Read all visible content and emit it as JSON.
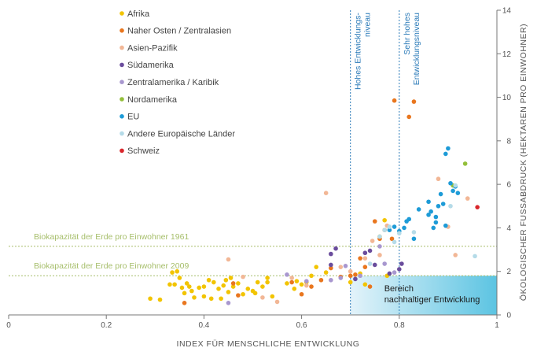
{
  "chart_data": {
    "type": "scatter",
    "title": "",
    "xlabel": "INDEX FÜR MENSCHLICHE ENTWICKLUNG",
    "ylabel": "ÖKOLOGISCHER FUSSABDRUCK (HEKTAREN PRO EINWOHNER)",
    "xlim": [
      0,
      1
    ],
    "ylim": [
      0,
      14
    ],
    "x_ticks": [
      "0",
      "0.2",
      "0.4",
      "0.6",
      "0.8",
      "1"
    ],
    "y_ticks": [
      "0",
      "2",
      "4",
      "6",
      "8",
      "10",
      "12",
      "14"
    ],
    "grid": false,
    "legend_position": "top-left",
    "reference_lines": {
      "horizontal": [
        {
          "label": "Biokapazität der Erde pro Einwohner 1961",
          "y": 3.15,
          "color": "#a6be6a"
        },
        {
          "label": "Biokapazität der Erde pro Einwohner 2009",
          "y": 1.8,
          "color": "#a6be6a"
        }
      ],
      "vertical": [
        {
          "label_lines": [
            "Hohes Entwicklungs-",
            "niveau"
          ],
          "x": 0.7,
          "color": "#2a7ab8"
        },
        {
          "label_lines": [
            "Sehr hohes",
            "Entwicklungsniveau"
          ],
          "x": 0.8,
          "color": "#2a7ab8"
        }
      ]
    },
    "region": {
      "label_lines": [
        "Bereich",
        "nachhaltiger Entwicklung"
      ],
      "x": [
        0.7,
        1.0
      ],
      "y": [
        0,
        1.8
      ],
      "color_start": "#e3f3fa",
      "color_end": "#5cc4e2"
    },
    "series": [
      {
        "name": "Afrika",
        "color": "#f2c400",
        "points": [
          [
            0.29,
            0.75
          ],
          [
            0.31,
            0.7
          ],
          [
            0.33,
            1.4
          ],
          [
            0.335,
            1.95
          ],
          [
            0.34,
            1.4
          ],
          [
            0.345,
            2.0
          ],
          [
            0.35,
            1.7
          ],
          [
            0.355,
            1.25
          ],
          [
            0.36,
            1.0
          ],
          [
            0.365,
            1.45
          ],
          [
            0.37,
            1.3
          ],
          [
            0.375,
            1.1
          ],
          [
            0.38,
            0.8
          ],
          [
            0.39,
            1.25
          ],
          [
            0.4,
            1.3
          ],
          [
            0.41,
            1.6
          ],
          [
            0.415,
            0.75
          ],
          [
            0.42,
            1.5
          ],
          [
            0.43,
            1.2
          ],
          [
            0.435,
            0.75
          ],
          [
            0.44,
            1.35
          ],
          [
            0.445,
            1.6
          ],
          [
            0.45,
            1.05
          ],
          [
            0.455,
            1.7
          ],
          [
            0.46,
            1.3
          ],
          [
            0.47,
            1.45
          ],
          [
            0.48,
            0.95
          ],
          [
            0.49,
            1.2
          ],
          [
            0.5,
            1.1
          ],
          [
            0.505,
            1.0
          ],
          [
            0.51,
            1.5
          ],
          [
            0.52,
            1.3
          ],
          [
            0.53,
            1.5
          ],
          [
            0.54,
            0.85
          ],
          [
            0.57,
            1.45
          ],
          [
            0.59,
            1.55
          ],
          [
            0.6,
            1.4
          ],
          [
            0.61,
            1.5
          ],
          [
            0.63,
            2.2
          ],
          [
            0.65,
            1.95
          ],
          [
            0.7,
            1.5
          ],
          [
            0.72,
            1.9
          ],
          [
            0.73,
            1.4
          ],
          [
            0.77,
            4.35
          ],
          [
            0.76,
            3.6
          ],
          [
            0.775,
            1.8
          ],
          [
            0.4,
            0.85
          ],
          [
            0.62,
            1.8
          ],
          [
            0.585,
            1.2
          ],
          [
            0.53,
            1.7
          ]
        ]
      },
      {
        "name": "Naher Osten / Zentralasien",
        "color": "#e9761e",
        "points": [
          [
            0.36,
            0.55
          ],
          [
            0.46,
            1.45
          ],
          [
            0.47,
            0.9
          ],
          [
            0.58,
            1.5
          ],
          [
            0.6,
            0.95
          ],
          [
            0.62,
            1.3
          ],
          [
            0.64,
            1.6
          ],
          [
            0.66,
            2.15
          ],
          [
            0.68,
            1.75
          ],
          [
            0.7,
            1.8
          ],
          [
            0.71,
            1.85
          ],
          [
            0.72,
            2.6
          ],
          [
            0.73,
            2.2
          ],
          [
            0.74,
            1.3
          ],
          [
            0.75,
            4.3
          ],
          [
            0.76,
            3.5
          ],
          [
            0.77,
            3.9
          ],
          [
            0.785,
            3.5
          ],
          [
            0.79,
            9.85
          ],
          [
            0.82,
            9.1
          ],
          [
            0.83,
            9.8
          ]
        ]
      },
      {
        "name": "Asien-Pazifik",
        "color": "#f2b796",
        "points": [
          [
            0.45,
            2.55
          ],
          [
            0.48,
            1.75
          ],
          [
            0.52,
            0.8
          ],
          [
            0.55,
            0.6
          ],
          [
            0.58,
            1.7
          ],
          [
            0.61,
            1.35
          ],
          [
            0.65,
            5.6
          ],
          [
            0.68,
            2.2
          ],
          [
            0.7,
            2.0
          ],
          [
            0.73,
            2.6
          ],
          [
            0.745,
            3.4
          ],
          [
            0.76,
            2.75
          ],
          [
            0.775,
            4.1
          ],
          [
            0.88,
            6.25
          ],
          [
            0.915,
            2.75
          ],
          [
            0.9,
            4.05
          ],
          [
            0.94,
            5.35
          ]
        ]
      },
      {
        "name": "Südamerika",
        "color": "#6a4c9c",
        "points": [
          [
            0.66,
            2.8
          ],
          [
            0.66,
            2.3
          ],
          [
            0.67,
            3.05
          ],
          [
            0.71,
            1.65
          ],
          [
            0.73,
            2.85
          ],
          [
            0.74,
            2.95
          ],
          [
            0.75,
            2.3
          ],
          [
            0.78,
            1.9
          ],
          [
            0.8,
            2.1
          ],
          [
            0.805,
            2.35
          ]
        ]
      },
      {
        "name": "Zentralamerika / Karibik",
        "color": "#a897cf",
        "points": [
          [
            0.45,
            0.55
          ],
          [
            0.57,
            1.85
          ],
          [
            0.61,
            1.55
          ],
          [
            0.66,
            1.6
          ],
          [
            0.68,
            1.7
          ],
          [
            0.69,
            2.25
          ],
          [
            0.72,
            1.8
          ],
          [
            0.76,
            3.15
          ],
          [
            0.77,
            2.35
          ],
          [
            0.79,
            1.95
          ]
        ]
      },
      {
        "name": "Nordamerika",
        "color": "#93bf3a",
        "points": [
          [
            0.91,
            5.95
          ],
          [
            0.935,
            6.95
          ]
        ]
      },
      {
        "name": "EU",
        "color": "#1d9bd7",
        "points": [
          [
            0.8,
            3.85
          ],
          [
            0.81,
            4.0
          ],
          [
            0.815,
            4.3
          ],
          [
            0.83,
            3.5
          ],
          [
            0.84,
            4.85
          ],
          [
            0.86,
            4.6
          ],
          [
            0.865,
            4.75
          ],
          [
            0.87,
            4.0
          ],
          [
            0.875,
            4.5
          ],
          [
            0.88,
            5.0
          ],
          [
            0.885,
            5.55
          ],
          [
            0.89,
            5.1
          ],
          [
            0.895,
            7.4
          ],
          [
            0.9,
            7.65
          ],
          [
            0.905,
            6.05
          ],
          [
            0.91,
            5.7
          ],
          [
            0.915,
            5.9
          ],
          [
            0.92,
            5.6
          ],
          [
            0.86,
            5.2
          ],
          [
            0.875,
            4.25
          ],
          [
            0.895,
            4.1
          ],
          [
            0.82,
            4.4
          ],
          [
            0.78,
            3.9
          ],
          [
            0.79,
            4.05
          ]
        ]
      },
      {
        "name": "Andere Europäische Länder",
        "color": "#b5dbe8",
        "points": [
          [
            0.74,
            2.35
          ],
          [
            0.76,
            3.6
          ],
          [
            0.77,
            3.9
          ],
          [
            0.78,
            4.05
          ],
          [
            0.79,
            3.35
          ],
          [
            0.8,
            3.75
          ],
          [
            0.83,
            3.8
          ],
          [
            0.905,
            5.0
          ],
          [
            0.955,
            2.7
          ],
          [
            0.915,
            5.95
          ]
        ]
      },
      {
        "name": "Schweiz",
        "color": "#d9262b",
        "points": [
          [
            0.96,
            4.95
          ]
        ]
      }
    ]
  }
}
